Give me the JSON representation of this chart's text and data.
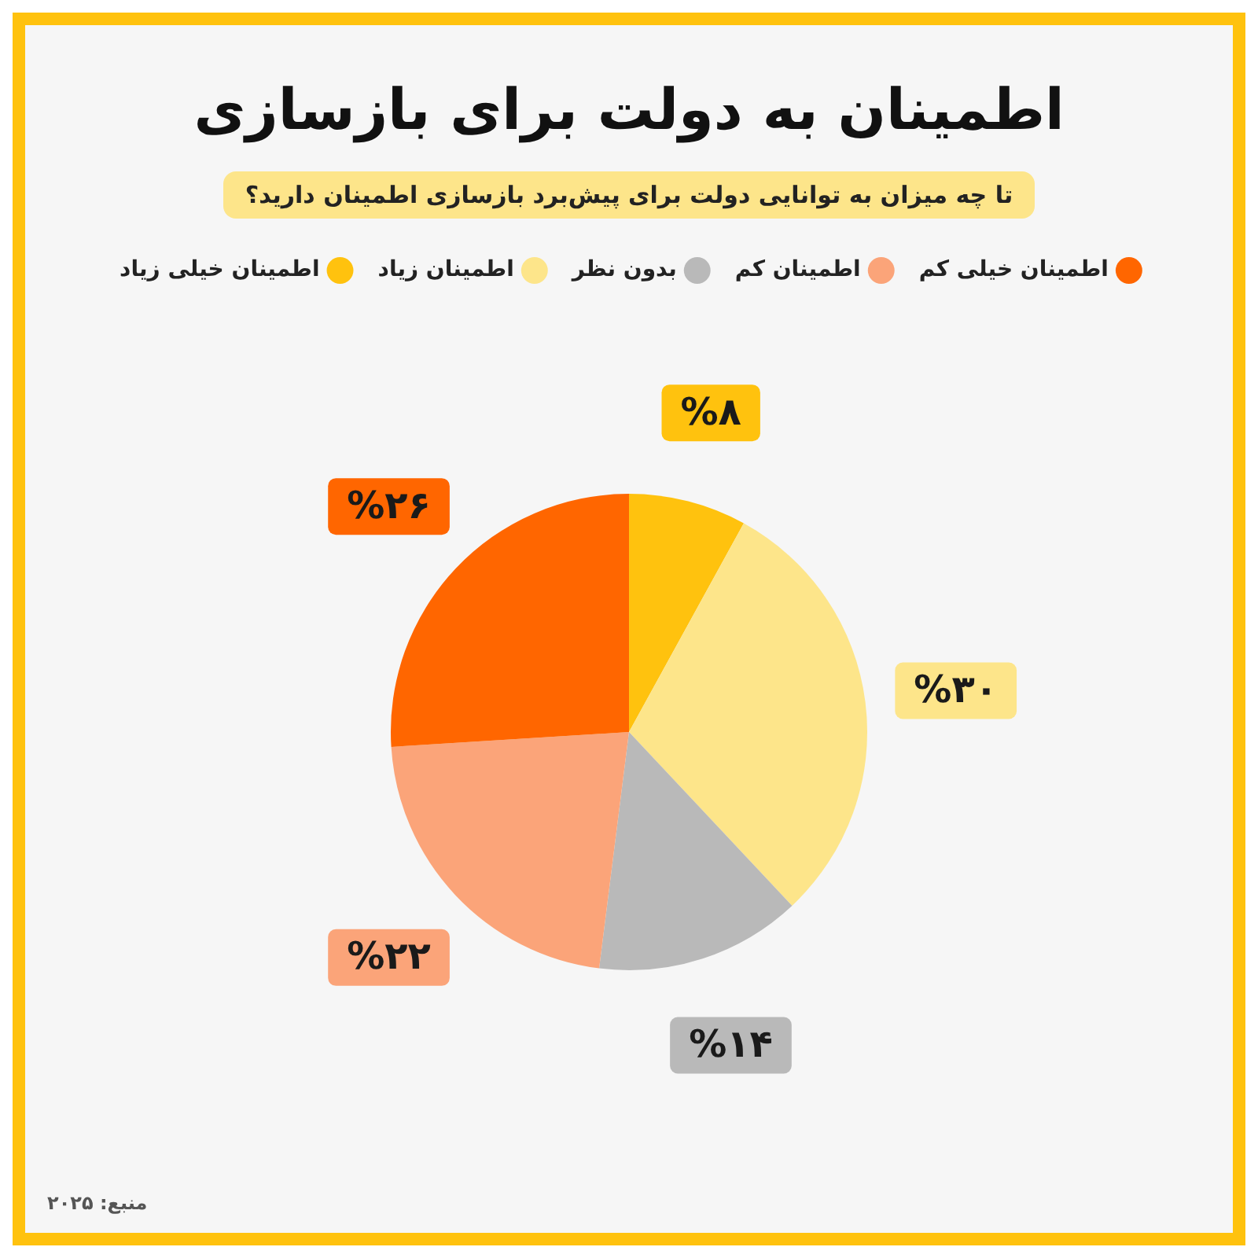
{
  "chart_data": {
    "type": "pie",
    "title": "اطمینان به دولت برای بازسازی",
    "subtitle": "تا چه میزان به توانایی دولت برای پیش‌برد بازسازی اطمینان دارید؟",
    "categories": [
      "اطمینان خیلی زیاد",
      "اطمینان زیاد",
      "بدون نظر",
      "اطمینان کم",
      "اطمینان خیلی کم"
    ],
    "values": [
      8,
      30,
      14,
      22,
      26
    ],
    "colors": [
      "#ffc20e",
      "#fde58a",
      "#b9b9b9",
      "#fba479",
      "#ff6600"
    ],
    "value_labels": [
      "%۸",
      "%۳۰",
      "%۱۴",
      "%۲۲",
      "%۲۶"
    ],
    "legend": "top",
    "annotations": [
      "منبع: ۲۰۲۵"
    ]
  }
}
